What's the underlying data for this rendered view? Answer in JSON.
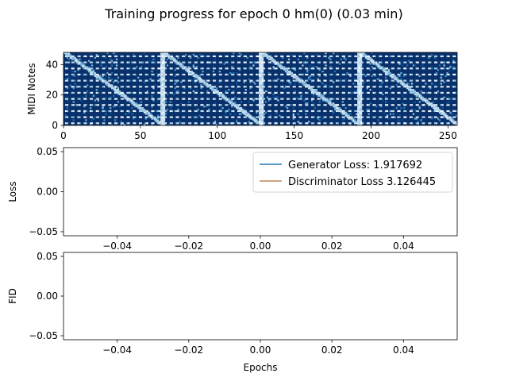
{
  "figure": {
    "title": "Training progress for epoch 0 hm(0) (0.03 min)"
  },
  "colors": {
    "generator": "#1f77b4",
    "discriminator": "#c2875a",
    "cmap_dark": "#08306b",
    "cmap_light": "#f7fbff"
  },
  "chart_data": [
    {
      "type": "heatmap",
      "title": "",
      "xlabel": "",
      "ylabel": "MIDI Notes",
      "xlim": [
        0,
        256
      ],
      "ylim": [
        0,
        48
      ],
      "xticks": [
        0,
        50,
        100,
        150,
        200,
        250
      ],
      "yticks": [
        0,
        20,
        40
      ],
      "xtick_labels": [
        "0",
        "50",
        "100",
        "150",
        "200",
        "250"
      ],
      "ytick_labels": [
        "0",
        "20",
        "40"
      ],
      "colormap": "Blues",
      "segment_boundaries": [
        64,
        128,
        192
      ],
      "grid": false
    },
    {
      "type": "line",
      "title": "",
      "xlabel": "",
      "ylabel": "Loss",
      "xlim": [
        -0.055,
        0.055
      ],
      "ylim": [
        -0.055,
        0.055
      ],
      "xticks": [
        -0.04,
        -0.02,
        0.0,
        0.02,
        0.04
      ],
      "yticks": [
        -0.05,
        0.0,
        0.05
      ],
      "xtick_labels": [
        "−0.04",
        "−0.02",
        "0.00",
        "0.02",
        "0.04"
      ],
      "ytick_labels": [
        "−0.05",
        "0.00",
        "0.05"
      ],
      "legend_position": "upper-right",
      "series": [
        {
          "name": "Generator Loss: 1.917692",
          "x": [],
          "y": []
        },
        {
          "name": "Discriminator Loss 3.126445",
          "x": [],
          "y": []
        }
      ],
      "grid": false
    },
    {
      "type": "line",
      "title": "",
      "xlabel": "Epochs",
      "ylabel": "FID",
      "xlim": [
        -0.055,
        0.055
      ],
      "ylim": [
        -0.055,
        0.055
      ],
      "xticks": [
        -0.04,
        -0.02,
        0.0,
        0.02,
        0.04
      ],
      "yticks": [
        -0.05,
        0.0,
        0.05
      ],
      "xtick_labels": [
        "−0.04",
        "−0.02",
        "0.00",
        "0.02",
        "0.04"
      ],
      "ytick_labels": [
        "−0.05",
        "0.00",
        "0.05"
      ],
      "series": [],
      "grid": false
    }
  ]
}
